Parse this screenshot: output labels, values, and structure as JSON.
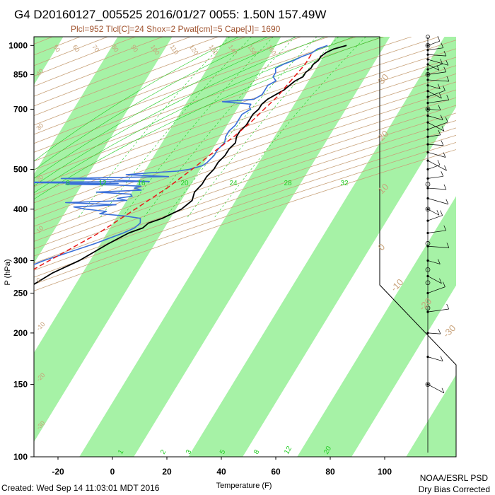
{
  "header": {
    "title": "G4 D20160127_005525 2016/01/27 0055:  1.50N 157.49W",
    "subtitle": "Plcl=952 Tlcl[C]=24 Shox=2 Pwat[cm]=5 Cape[J]= 1690"
  },
  "footer": {
    "created": "Created: Wed Sep 14 11:03:01 MDT 2016",
    "org": "NOAA/ESRL PSD",
    "note": "Dry Bias Corrected"
  },
  "colors": {
    "isotherm_band": "#a6f2a6",
    "temperature": "#000000",
    "dewpoint": "#3a6fd8",
    "parcel": "#e81818",
    "dry_adiabat": "#c8a27a",
    "moist_adiabat": "#22cc22",
    "frame": "#000000"
  },
  "chart_data": {
    "type": "line",
    "title": "G4 D20160127_005525 2016/01/27 0055:  1.50N 157.49W",
    "xlabel": "Temperature (F)",
    "ylabel": "P (hPa)",
    "x_scale": "skew-T",
    "y_scale": "log (inverted)",
    "xlim": [
      -33,
      128
    ],
    "ylim": [
      1050,
      100
    ],
    "x_ticks": [
      "-20",
      "0",
      "20",
      "40",
      "60",
      "80",
      "100"
    ],
    "y_ticks": [
      "100",
      "150",
      "200",
      "250",
      "300",
      "400",
      "500",
      "700",
      "850",
      "1000"
    ],
    "dry_adiabat_labels": [
      "50",
      "60",
      "70",
      "80",
      "90",
      "100",
      "110",
      "120",
      "130",
      "140",
      "150",
      "160"
    ],
    "right_isotherm_labels": [
      "30",
      "20",
      "10",
      "0",
      "-10",
      "-20",
      "-30"
    ],
    "left_isotherm_labels": [
      "40",
      "30",
      "20",
      "10",
      "0",
      "-10",
      "-20",
      "-30"
    ],
    "mixing_ratio_labels": [
      "8",
      "12",
      "16",
      "20",
      "24",
      "28",
      "32"
    ],
    "bottom_mixing_labels": [
      "1",
      "2",
      "3",
      "5",
      "8",
      "12",
      "20"
    ],
    "series": [
      {
        "name": "Temperature",
        "points": [
          [
            1000,
            86
          ],
          [
            980,
            82
          ],
          [
            960,
            80
          ],
          [
            940,
            79
          ],
          [
            920,
            79
          ],
          [
            900,
            78
          ],
          [
            880,
            78
          ],
          [
            860,
            77
          ],
          [
            840,
            77
          ],
          [
            820,
            75
          ],
          [
            800,
            74
          ],
          [
            780,
            73
          ],
          [
            760,
            71
          ],
          [
            740,
            69
          ],
          [
            720,
            68
          ],
          [
            700,
            68
          ],
          [
            680,
            67
          ],
          [
            660,
            67
          ],
          [
            640,
            67
          ],
          [
            620,
            66
          ],
          [
            600,
            66
          ],
          [
            580,
            67
          ],
          [
            560,
            66
          ],
          [
            540,
            66
          ],
          [
            520,
            65
          ],
          [
            500,
            65
          ],
          [
            480,
            64
          ],
          [
            460,
            64
          ],
          [
            440,
            63
          ],
          [
            420,
            64
          ],
          [
            400,
            62
          ],
          [
            380,
            57
          ],
          [
            370,
            53
          ],
          [
            360,
            52
          ],
          [
            350,
            48
          ],
          [
            330,
            43
          ],
          [
            300,
            36
          ],
          [
            280,
            29
          ],
          [
            260,
            24
          ],
          [
            240,
            18
          ],
          [
            220,
            11
          ],
          [
            200,
            4
          ],
          [
            180,
            -5
          ]
        ]
      },
      {
        "name": "Dewpoint",
        "points": [
          [
            1000,
            79
          ],
          [
            980,
            76
          ],
          [
            960,
            75
          ],
          [
            940,
            72
          ],
          [
            920,
            70
          ],
          [
            900,
            67
          ],
          [
            880,
            65
          ],
          [
            860,
            66
          ],
          [
            840,
            66
          ],
          [
            820,
            68
          ],
          [
            800,
            66
          ],
          [
            780,
            66
          ],
          [
            760,
            66
          ],
          [
            740,
            64
          ],
          [
            730,
            53
          ],
          [
            720,
            64
          ],
          [
            710,
            64
          ],
          [
            700,
            65
          ],
          [
            680,
            63
          ],
          [
            660,
            63
          ],
          [
            640,
            63
          ],
          [
            620,
            62
          ],
          [
            600,
            62
          ],
          [
            580,
            63
          ],
          [
            560,
            62
          ],
          [
            540,
            62
          ],
          [
            520,
            61
          ],
          [
            510,
            60
          ],
          [
            500,
            56
          ],
          [
            495,
            52
          ],
          [
            490,
            42
          ],
          [
            485,
            34
          ],
          [
            480,
            50
          ],
          [
            475,
            11
          ],
          [
            472,
            29
          ],
          [
            470,
            33
          ],
          [
            467,
            44
          ],
          [
            465,
            -11
          ],
          [
            462,
            33
          ],
          [
            460,
            14
          ],
          [
            458,
            32
          ],
          [
            455,
            42
          ],
          [
            450,
            40
          ],
          [
            445,
            43
          ],
          [
            440,
            27
          ],
          [
            435,
            40
          ],
          [
            430,
            41
          ],
          [
            425,
            36
          ],
          [
            420,
            40
          ],
          [
            415,
            18
          ],
          [
            410,
            37
          ],
          [
            405,
            22
          ],
          [
            400,
            27
          ],
          [
            395,
            35
          ],
          [
            390,
            33
          ],
          [
            385,
            43
          ],
          [
            380,
            49
          ],
          [
            370,
            50
          ],
          [
            360,
            49
          ],
          [
            350,
            46
          ],
          [
            330,
            38
          ],
          [
            300,
            23
          ],
          [
            270,
            10
          ],
          [
            250,
            -1
          ],
          [
            230,
            -16
          ],
          [
            210,
            -26
          ],
          [
            200,
            -31
          ]
        ]
      },
      {
        "name": "Parcel",
        "points": [
          [
            952,
            75
          ],
          [
            900,
            75
          ],
          [
            850,
            74
          ],
          [
            800,
            73
          ],
          [
            750,
            72
          ],
          [
            700,
            70
          ],
          [
            650,
            68
          ],
          [
            600,
            65
          ],
          [
            550,
            61
          ],
          [
            500,
            57
          ],
          [
            450,
            52
          ],
          [
            400,
            45
          ],
          [
            350,
            37
          ],
          [
            300,
            25
          ],
          [
            250,
            11
          ],
          [
            210,
            -3
          ],
          [
            180,
            -16
          ]
        ]
      }
    ],
    "wind_barbs_present": true
  }
}
